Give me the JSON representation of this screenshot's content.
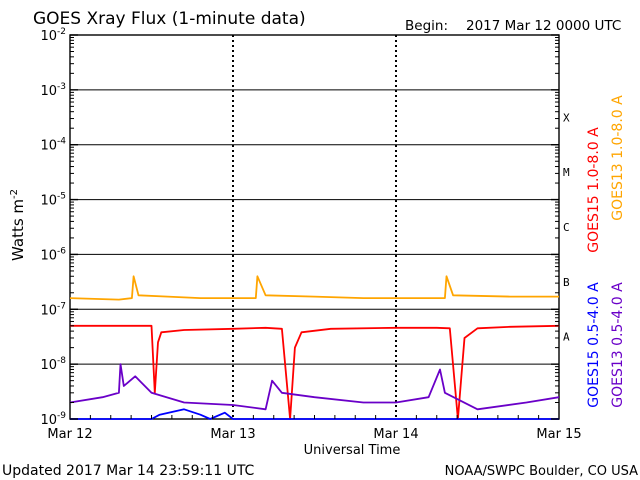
{
  "header": {
    "title": "GOES Xray Flux (1-minute data)",
    "begin_label": "Begin:",
    "begin_value": "2017 Mar 12 0000 UTC"
  },
  "footer": {
    "updated": "Updated 2017 Mar 14 23:59:11 UTC",
    "source": "NOAA/SWPC Boulder, CO USA"
  },
  "chart_data": {
    "type": "line",
    "title": "GOES Xray Flux (1-minute data)",
    "xlabel": "Universal Time",
    "ylabel": "Watts m-2",
    "y_scale": "log",
    "ylim": [
      1e-09,
      0.01
    ],
    "xlim_days": [
      "Mar 12",
      "Mar 15"
    ],
    "x_ticks": [
      "Mar 12",
      "Mar 13",
      "Mar 14",
      "Mar 15"
    ],
    "y_ticks": [
      "10-9",
      "10-8",
      "10-7",
      "10-6",
      "10-5",
      "10-4",
      "10-3",
      "10-2"
    ],
    "flare_classes": [
      "A",
      "B",
      "C",
      "M",
      "X"
    ],
    "grid": true,
    "legend_position": "right",
    "colors": {
      "goes15_long": "#ff0000",
      "goes13_long": "#ffa500",
      "goes15_short": "#0000ff",
      "goes13_short": "#6a00c8"
    },
    "series": [
      {
        "name": "GOES15 1.0-8.0 A",
        "key": "goes15_long",
        "points": [
          [
            0.0,
            5e-08
          ],
          [
            0.22,
            5e-08
          ],
          [
            0.34,
            5e-08
          ],
          [
            0.5,
            5e-08
          ],
          [
            0.52,
            3e-09
          ],
          [
            0.54,
            2.5e-08
          ],
          [
            0.56,
            3.8e-08
          ],
          [
            0.7,
            4.2e-08
          ],
          [
            1.0,
            4.4e-08
          ],
          [
            1.2,
            4.6e-08
          ],
          [
            1.3,
            4.4e-08
          ],
          [
            1.35,
            1e-09
          ],
          [
            1.38,
            2e-08
          ],
          [
            1.42,
            3.8e-08
          ],
          [
            1.6,
            4.4e-08
          ],
          [
            2.0,
            4.6e-08
          ],
          [
            2.25,
            4.6e-08
          ],
          [
            2.33,
            4.5e-08
          ],
          [
            2.38,
            1e-09
          ],
          [
            2.42,
            3e-08
          ],
          [
            2.5,
            4.5e-08
          ],
          [
            2.7,
            4.8e-08
          ],
          [
            3.0,
            5e-08
          ]
        ]
      },
      {
        "name": "GOES13 1.0-8.0 A",
        "key": "goes13_long",
        "points": [
          [
            0.0,
            1.6e-07
          ],
          [
            0.3,
            1.5e-07
          ],
          [
            0.38,
            1.6e-07
          ],
          [
            0.39,
            4e-07
          ],
          [
            0.42,
            1.8e-07
          ],
          [
            0.6,
            1.7e-07
          ],
          [
            0.8,
            1.6e-07
          ],
          [
            1.0,
            1.6e-07
          ],
          [
            1.14,
            1.6e-07
          ],
          [
            1.15,
            4e-07
          ],
          [
            1.2,
            1.8e-07
          ],
          [
            1.5,
            1.7e-07
          ],
          [
            1.8,
            1.6e-07
          ],
          [
            2.0,
            1.6e-07
          ],
          [
            2.3,
            1.6e-07
          ],
          [
            2.31,
            4e-07
          ],
          [
            2.35,
            1.8e-07
          ],
          [
            2.7,
            1.7e-07
          ],
          [
            3.0,
            1.7e-07
          ]
        ]
      },
      {
        "name": "GOES15 0.5-4.0 A",
        "key": "goes15_short",
        "points": [
          [
            0.0,
            1e-09
          ],
          [
            0.5,
            1e-09
          ],
          [
            0.55,
            1.2e-09
          ],
          [
            0.7,
            1.5e-09
          ],
          [
            0.8,
            1.2e-09
          ],
          [
            0.86,
            1e-09
          ],
          [
            0.95,
            1.3e-09
          ],
          [
            1.0,
            1e-09
          ],
          [
            3.0,
            1e-09
          ]
        ]
      },
      {
        "name": "GOES13 0.5-4.0 A",
        "key": "goes13_short",
        "points": [
          [
            0.0,
            2e-09
          ],
          [
            0.2,
            2.5e-09
          ],
          [
            0.3,
            3e-09
          ],
          [
            0.31,
            1e-08
          ],
          [
            0.33,
            4e-09
          ],
          [
            0.4,
            6e-09
          ],
          [
            0.5,
            3e-09
          ],
          [
            0.7,
            2e-09
          ],
          [
            1.0,
            1.8e-09
          ],
          [
            1.2,
            1.5e-09
          ],
          [
            1.24,
            5e-09
          ],
          [
            1.3,
            3e-09
          ],
          [
            1.5,
            2.5e-09
          ],
          [
            1.8,
            2e-09
          ],
          [
            2.0,
            2e-09
          ],
          [
            2.2,
            2.5e-09
          ],
          [
            2.27,
            8e-09
          ],
          [
            2.3,
            3e-09
          ],
          [
            2.5,
            1.5e-09
          ],
          [
            2.8,
            2e-09
          ],
          [
            3.0,
            2.5e-09
          ]
        ]
      }
    ]
  }
}
